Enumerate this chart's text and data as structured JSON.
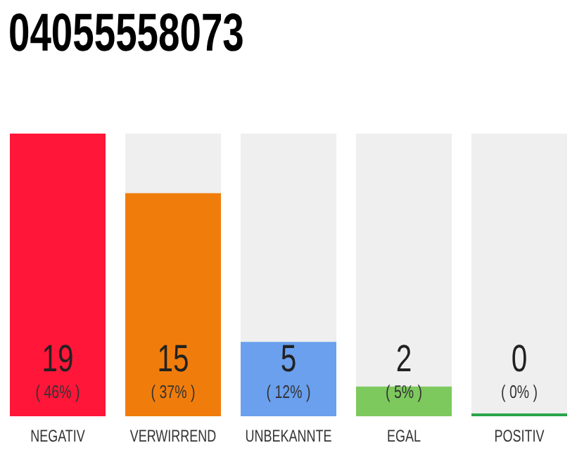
{
  "chart_data": {
    "type": "bar",
    "title": "04055558073",
    "categories": [
      "NEGATIV",
      "VERWIRREND",
      "UNBEKANNTE",
      "EGAL",
      "POSITIV"
    ],
    "values": [
      19,
      15,
      5,
      2,
      0
    ],
    "colors": [
      "#ff1639",
      "#f07d0b",
      "#6aa0ee",
      "#7dc95e",
      "#2aa54a"
    ],
    "value_labels": [
      "19\n( 46% )",
      "15\n( 37% )",
      "5\n( 12% )",
      "2\n( 5% )",
      "0\n( 0% )"
    ],
    "tick_labels": "x",
    "grid": false,
    "legend": false
  }
}
